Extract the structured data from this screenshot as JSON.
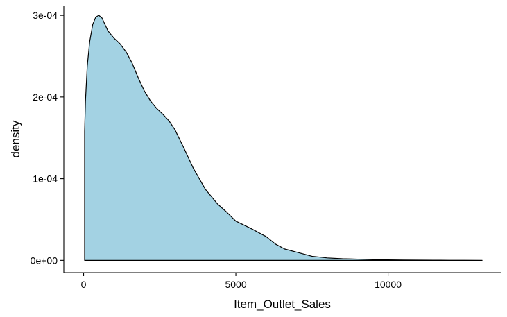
{
  "chart_data": {
    "type": "area",
    "title": "",
    "xlabel": "Item_Outlet_Sales",
    "ylabel": "density",
    "xlim": [
      -650,
      13700
    ],
    "ylim": [
      -1.5e-05,
      0.000312
    ],
    "x_ticks": [
      0,
      5000,
      10000
    ],
    "x_tick_labels": [
      "0",
      "5000",
      "10000"
    ],
    "y_ticks": [
      0,
      0.0001,
      0.0002,
      0.0003
    ],
    "y_tick_labels": [
      "0e+00",
      "1e-04",
      "2e-04",
      "3e-04"
    ],
    "grid": false,
    "legend": "none",
    "fill_color": "#a3d2e3",
    "line_color": "#000000",
    "series": [
      {
        "x": [
          33,
          60,
          120,
          200,
          300,
          400,
          500,
          600,
          700,
          800,
          1000,
          1200,
          1400,
          1600,
          1800,
          2000,
          2200,
          2400,
          2600,
          2800,
          3000,
          3300,
          3600,
          4000,
          4400,
          4700,
          5000,
          5500,
          6000,
          6300,
          6600,
          7000,
          7500,
          8000,
          8500,
          9000,
          9500,
          10000,
          10500,
          11000,
          11500,
          12000,
          12500,
          13087
        ],
        "values": [
          0.000158,
          0.000195,
          0.000238,
          0.000268,
          0.000289,
          0.000298,
          0.0003,
          0.000297,
          0.000289,
          0.000281,
          0.000272,
          0.000265,
          0.000255,
          0.000241,
          0.000223,
          0.000207,
          0.000195,
          0.000186,
          0.000179,
          0.000171,
          0.00016,
          0.000137,
          0.000113,
          8.7e-05,
          6.9e-05,
          5.9e-05,
          4.8e-05,
          3.9e-05,
          2.9e-05,
          2e-05,
          1.4e-05,
          1e-05,
          5e-06,
          3e-06,
          2e-06,
          1.5e-06,
          1e-06,
          6e-07,
          4e-07,
          3e-07,
          2e-07,
          1e-07,
          5e-08,
          0.0
        ]
      }
    ]
  }
}
